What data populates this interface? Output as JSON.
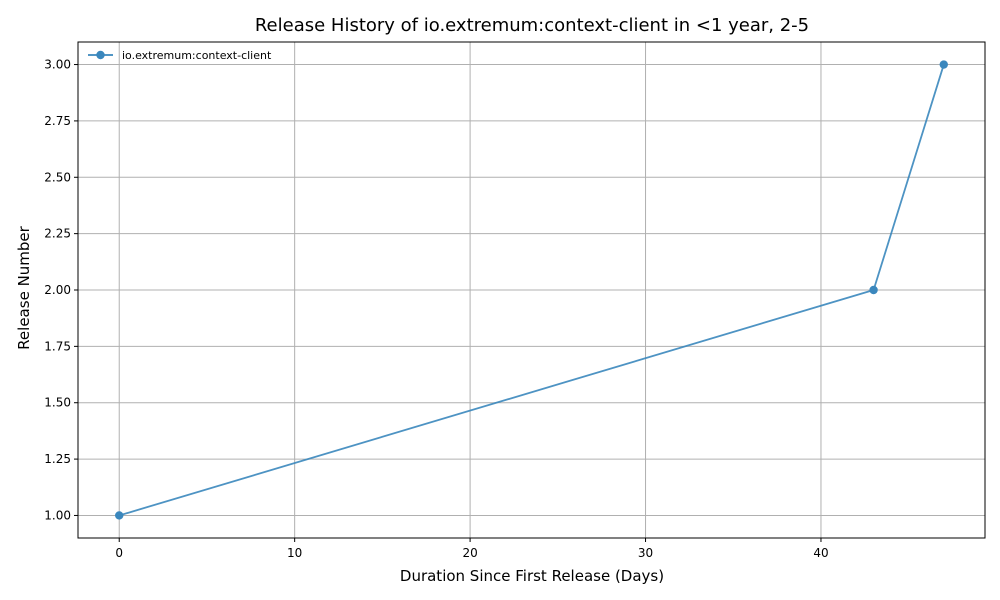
{
  "chart_data": {
    "type": "line",
    "title": "Release History of io.extremum:context-client in <1 year, 2-5",
    "xlabel": "Duration Since First Release (Days)",
    "ylabel": "Release Number",
    "xlim": [
      -2.35,
      49.35
    ],
    "ylim": [
      0.9,
      3.1
    ],
    "xticks": [
      0,
      10,
      20,
      30,
      40
    ],
    "xtick_labels": [
      "0",
      "10",
      "20",
      "30",
      "40"
    ],
    "yticks": [
      1.0,
      1.25,
      1.5,
      1.75,
      2.0,
      2.25,
      2.5,
      2.75,
      3.0
    ],
    "ytick_labels": [
      "1.00",
      "1.25",
      "1.50",
      "1.75",
      "2.00",
      "2.25",
      "2.50",
      "2.75",
      "3.00"
    ],
    "grid": true,
    "legend_position": "top-left",
    "series": [
      {
        "name": "io.extremum:context-client",
        "color": "#3a87bd",
        "x": [
          0,
          43,
          47
        ],
        "y": [
          1,
          2,
          3
        ]
      }
    ]
  }
}
